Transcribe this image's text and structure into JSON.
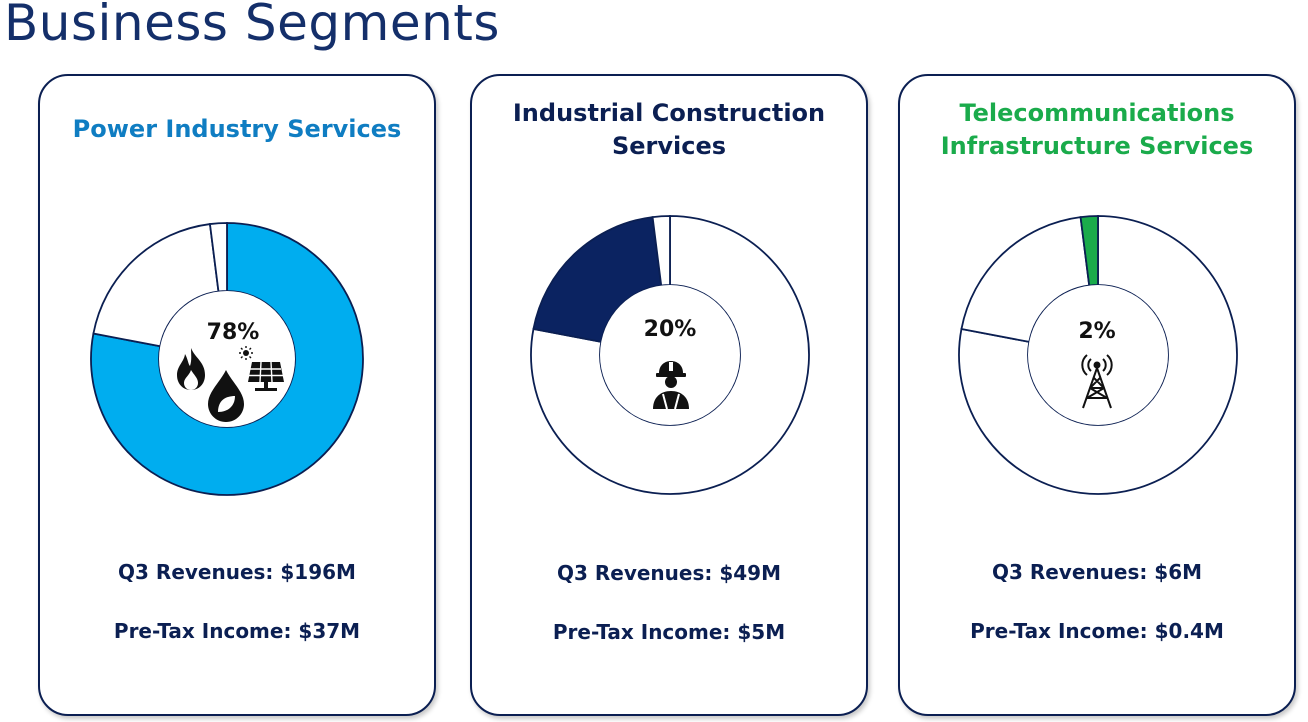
{
  "page": {
    "title": "Business Segments"
  },
  "segments": [
    {
      "title": "Power Industry Services",
      "title_color": "#0f7dc2",
      "share_label": "78%",
      "revenues": "Q3 Revenues: $196M",
      "pretax": "Pre-Tax Income: $37M",
      "icons": [
        "flame-icon",
        "leaf-drop-icon",
        "solar-panel-icon"
      ]
    },
    {
      "title": "Industrial Construction Services",
      "title_color": "#0b1f52",
      "share_label": "20%",
      "revenues": "Q3 Revenues: $49M",
      "pretax": "Pre-Tax Income: $5M",
      "icons": [
        "construction-worker-icon"
      ]
    },
    {
      "title": "Telecommunications Infrastructure Services",
      "title_color": "#1aab4b",
      "share_label": "2%",
      "revenues": "Q3 Revenues: $6M",
      "pretax": "Pre-Tax Income: $0.4M",
      "icons": [
        "cell-tower-icon"
      ]
    }
  ],
  "chart_data": [
    {
      "type": "pie",
      "categories": [
        "Power Industry Services",
        "Industrial Construction Services",
        "Telecommunications Infrastructure Services"
      ],
      "values": [
        78,
        20,
        2
      ],
      "highlight": "Power Industry Services",
      "highlight_color": "#00adef"
    },
    {
      "type": "pie",
      "categories": [
        "Power Industry Services",
        "Industrial Construction Services",
        "Telecommunications Infrastructure Services"
      ],
      "values": [
        78,
        20,
        2
      ],
      "highlight": "Industrial Construction Services",
      "highlight_color": "#0b2361"
    },
    {
      "type": "pie",
      "categories": [
        "Power Industry Services",
        "Industrial Construction Services",
        "Telecommunications Infrastructure Services"
      ],
      "values": [
        78,
        20,
        2
      ],
      "highlight": "Telecommunications Infrastructure Services",
      "highlight_color": "#1aab4b"
    }
  ]
}
